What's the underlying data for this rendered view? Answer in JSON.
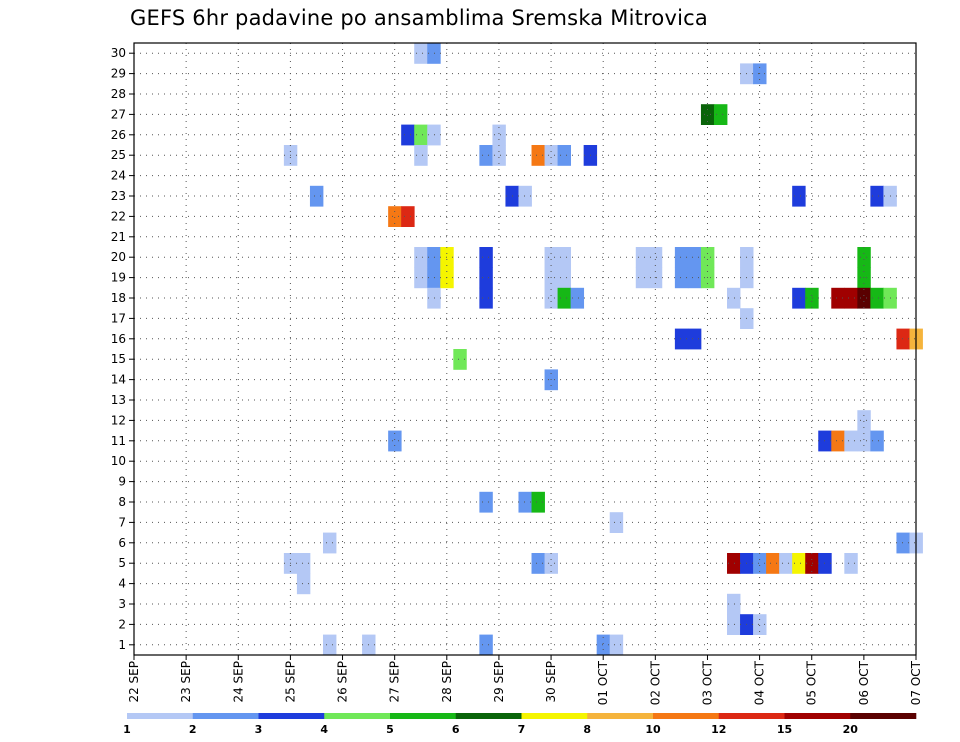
{
  "chart_data": {
    "type": "heatmap",
    "title": "GEFS 6hr padavine po ansamblima Sremska Mitrovica",
    "x_tick_labels": [
      "22 SEP",
      "23 SEP",
      "24 SEP",
      "25 SEP",
      "26 SEP",
      "27 SEP",
      "28 SEP",
      "29 SEP",
      "30 SEP",
      "01 OCT",
      "02 OCT",
      "03 OCT",
      "04 OCT",
      "05 OCT",
      "06 OCT",
      "07 OCT"
    ],
    "x_range_days": [
      0,
      15
    ],
    "y_tick_labels": [
      "1",
      "2",
      "3",
      "4",
      "5",
      "6",
      "7",
      "8",
      "9",
      "10",
      "11",
      "12",
      "13",
      "14",
      "15",
      "16",
      "17",
      "18",
      "19",
      "20",
      "21",
      "22",
      "23",
      "24",
      "25",
      "26",
      "27",
      "28",
      "29",
      "30"
    ],
    "grid": "dotted",
    "colorbar": {
      "labels": [
        "1",
        "2",
        "3",
        "4",
        "5",
        "6",
        "7",
        "8",
        "10",
        "12",
        "15",
        "20"
      ],
      "colors": [
        "#b4c8f5",
        "#6496f0",
        "#1e3cdc",
        "#70e858",
        "#16b816",
        "#096409",
        "#f5f500",
        "#f5b43c",
        "#f57814",
        "#dc2814",
        "#a00000",
        "#5a0000"
      ]
    },
    "cells": [
      [
        5.5,
        30,
        1
      ],
      [
        5.75,
        30,
        2
      ],
      [
        11.75,
        29,
        1
      ],
      [
        12.0,
        29,
        2
      ],
      [
        11.0,
        27,
        6
      ],
      [
        11.25,
        27,
        5
      ],
      [
        5.25,
        26,
        3
      ],
      [
        5.5,
        26,
        4
      ],
      [
        5.75,
        26,
        1
      ],
      [
        7.0,
        26,
        1
      ],
      [
        3.0,
        25,
        1
      ],
      [
        5.5,
        25,
        1
      ],
      [
        6.75,
        25,
        2
      ],
      [
        7.0,
        25,
        1
      ],
      [
        7.75,
        25,
        9
      ],
      [
        8.0,
        25,
        1
      ],
      [
        8.25,
        25,
        2
      ],
      [
        8.75,
        25,
        3
      ],
      [
        3.5,
        23,
        2
      ],
      [
        7.25,
        23,
        3
      ],
      [
        7.5,
        23,
        1
      ],
      [
        12.75,
        23,
        3
      ],
      [
        14.25,
        23,
        3
      ],
      [
        14.5,
        23,
        1
      ],
      [
        5.0,
        22,
        9
      ],
      [
        5.25,
        22,
        10
      ],
      [
        5.5,
        20,
        1
      ],
      [
        5.75,
        20,
        2
      ],
      [
        6.0,
        20,
        7
      ],
      [
        6.75,
        20,
        3
      ],
      [
        8.0,
        20,
        1
      ],
      [
        8.25,
        20,
        1
      ],
      [
        9.75,
        20,
        1
      ],
      [
        10.0,
        20,
        1
      ],
      [
        10.5,
        20,
        2
      ],
      [
        10.75,
        20,
        2
      ],
      [
        11.0,
        20,
        4
      ],
      [
        11.75,
        20,
        1
      ],
      [
        14.0,
        20,
        5
      ],
      [
        5.5,
        19,
        1
      ],
      [
        5.75,
        19,
        2
      ],
      [
        6.0,
        19,
        7
      ],
      [
        6.75,
        19,
        3
      ],
      [
        8.0,
        19,
        1
      ],
      [
        8.25,
        19,
        1
      ],
      [
        9.75,
        19,
        1
      ],
      [
        10.0,
        19,
        1
      ],
      [
        10.5,
        19,
        2
      ],
      [
        10.75,
        19,
        2
      ],
      [
        11.0,
        19,
        4
      ],
      [
        11.75,
        19,
        1
      ],
      [
        14.0,
        19,
        5
      ],
      [
        5.75,
        18,
        1
      ],
      [
        6.75,
        18,
        3
      ],
      [
        8.0,
        18,
        1
      ],
      [
        8.25,
        18,
        5
      ],
      [
        8.5,
        18,
        2
      ],
      [
        11.5,
        18,
        1
      ],
      [
        12.75,
        18,
        3
      ],
      [
        13.0,
        18,
        5
      ],
      [
        13.5,
        18,
        11
      ],
      [
        13.75,
        18,
        11
      ],
      [
        14.0,
        18,
        12
      ],
      [
        14.25,
        18,
        5
      ],
      [
        14.5,
        18,
        4
      ],
      [
        11.75,
        17,
        1
      ],
      [
        10.5,
        16,
        3
      ],
      [
        10.75,
        16,
        3
      ],
      [
        14.75,
        16,
        10
      ],
      [
        15.0,
        16,
        8
      ],
      [
        6.25,
        15,
        4
      ],
      [
        8.0,
        14,
        2
      ],
      [
        14.0,
        12,
        1
      ],
      [
        5.0,
        11,
        2
      ],
      [
        13.25,
        11,
        3
      ],
      [
        13.5,
        11,
        9
      ],
      [
        13.75,
        11,
        1
      ],
      [
        14.0,
        11,
        1
      ],
      [
        14.25,
        11,
        2
      ],
      [
        6.75,
        8,
        2
      ],
      [
        7.5,
        8,
        2
      ],
      [
        7.75,
        8,
        5
      ],
      [
        9.25,
        7,
        1
      ],
      [
        3.75,
        6,
        1
      ],
      [
        14.75,
        6,
        2
      ],
      [
        15.0,
        6,
        1
      ],
      [
        3.0,
        5,
        1
      ],
      [
        3.25,
        5,
        1
      ],
      [
        7.75,
        5,
        2
      ],
      [
        8.0,
        5,
        1
      ],
      [
        11.5,
        5,
        11
      ],
      [
        11.75,
        5,
        3
      ],
      [
        12.0,
        5,
        2
      ],
      [
        12.25,
        5,
        9
      ],
      [
        12.5,
        5,
        1
      ],
      [
        12.75,
        5,
        7
      ],
      [
        13.0,
        5,
        11
      ],
      [
        13.25,
        5,
        3
      ],
      [
        13.75,
        5,
        1
      ],
      [
        3.25,
        4,
        1
      ],
      [
        11.5,
        3,
        1
      ],
      [
        11.5,
        2,
        1
      ],
      [
        11.75,
        2,
        3
      ],
      [
        12.0,
        2,
        1
      ],
      [
        3.75,
        1,
        1
      ],
      [
        4.5,
        1,
        1
      ],
      [
        6.75,
        1,
        2
      ],
      [
        9.0,
        1,
        2
      ],
      [
        9.25,
        1,
        1
      ]
    ]
  }
}
